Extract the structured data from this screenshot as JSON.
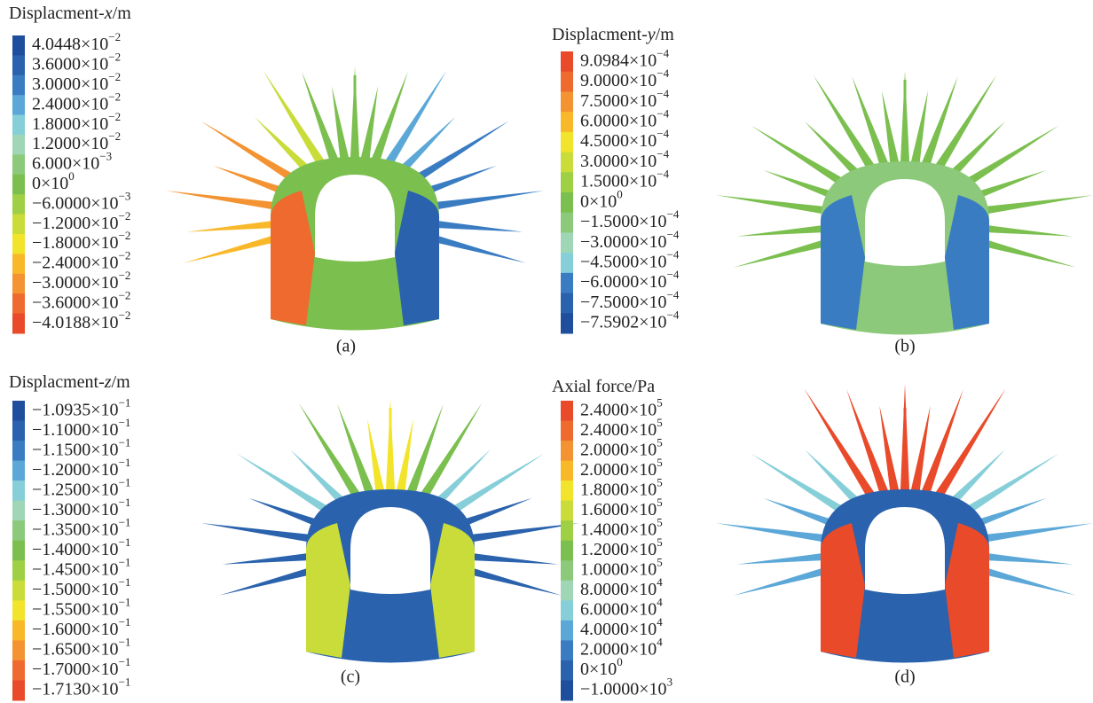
{
  "panels": [
    {
      "title": [
        "Displacment-",
        "x",
        "/m"
      ],
      "caption": "(a)",
      "legend": [
        {
          "m": "4.0448×10",
          "e": "−2"
        },
        {
          "m": "3.6000×10",
          "e": "−2"
        },
        {
          "m": "3.0000×10",
          "e": "−2"
        },
        {
          "m": "2.4000×10",
          "e": "−2"
        },
        {
          "m": "1.8000×10",
          "e": "−2"
        },
        {
          "m": "1.2000×10",
          "e": "−2"
        },
        {
          "m": "6.000×10",
          "e": "−3"
        },
        {
          "m": "0×10",
          "e": "0"
        },
        {
          "m": "−6.0000×10",
          "e": "−3"
        },
        {
          "m": "−1.2000×10",
          "e": "−2"
        },
        {
          "m": "−1.8000×10",
          "e": "−2"
        },
        {
          "m": "−2.4000×10",
          "e": "−2"
        },
        {
          "m": "−3.0000×10",
          "e": "−2"
        },
        {
          "m": "−3.6000×10",
          "e": "−2"
        },
        {
          "m": "−4.0188×10",
          "e": "−2"
        }
      ],
      "colors": [
        "#1f4e9c",
        "#2a62ad",
        "#3a7cc2",
        "#5ba8d8",
        "#86cfd9",
        "#9fd6b5",
        "#8cc97a",
        "#7bbf4f",
        "#9fcf45",
        "#c9dc3a",
        "#f2e42a",
        "#f8b82a",
        "#f39332",
        "#ee6a2e",
        "#e84a2a"
      ]
    },
    {
      "title": [
        "Displacment-",
        "y",
        "/m"
      ],
      "caption": "(b)",
      "legend": [
        {
          "m": "9.0984×10",
          "e": "−4"
        },
        {
          "m": "9.0000×10",
          "e": "−4"
        },
        {
          "m": "7.5000×10",
          "e": "−4"
        },
        {
          "m": "6.0000×10",
          "e": "−4"
        },
        {
          "m": "4.5000×10",
          "e": "−4"
        },
        {
          "m": "3.0000×10",
          "e": "−4"
        },
        {
          "m": "1.5000×10",
          "e": "−4"
        },
        {
          "m": "0×10",
          "e": "0"
        },
        {
          "m": "−1.5000×10",
          "e": "−4"
        },
        {
          "m": "−3.0000×10",
          "e": "−4"
        },
        {
          "m": "−4.5000×10",
          "e": "−4"
        },
        {
          "m": "−6.0000×10",
          "e": "−4"
        },
        {
          "m": "−7.5000×10",
          "e": "−4"
        },
        {
          "m": "−7.5902×10",
          "e": "−4"
        }
      ],
      "colors": [
        "#e84a2a",
        "#ee6a2e",
        "#f39332",
        "#f8b82a",
        "#f2e42a",
        "#c9dc3a",
        "#9fcf45",
        "#7bbf4f",
        "#8cc97a",
        "#9fd6b5",
        "#86cfd9",
        "#3a7cc2",
        "#2a62ad",
        "#1f4e9c"
      ]
    },
    {
      "title": [
        "Displacment-",
        "z",
        "/m"
      ],
      "caption": "(c)",
      "legend": [
        {
          "m": "−1.0935×10",
          "e": "−1"
        },
        {
          "m": "−1.1000×10",
          "e": "−1"
        },
        {
          "m": "−1.1500×10",
          "e": "−1"
        },
        {
          "m": "−1.2000×10",
          "e": "−1"
        },
        {
          "m": "−1.2500×10",
          "e": "−1"
        },
        {
          "m": "−1.3000×10",
          "e": "−1"
        },
        {
          "m": "−1.3500×10",
          "e": "−1"
        },
        {
          "m": "−1.4000×10",
          "e": "−1"
        },
        {
          "m": "−1.4500×10",
          "e": "−1"
        },
        {
          "m": "−1.5000×10",
          "e": "−1"
        },
        {
          "m": "−1.5500×10",
          "e": "−1"
        },
        {
          "m": "−1.6000×10",
          "e": "−1"
        },
        {
          "m": "−1.6500×10",
          "e": "−1"
        },
        {
          "m": "−1.7000×10",
          "e": "−1"
        },
        {
          "m": "−1.7130×10",
          "e": "−1"
        }
      ],
      "colors": [
        "#1f4e9c",
        "#2a62ad",
        "#3a7cc2",
        "#5ba8d8",
        "#86cfd9",
        "#9fd6b5",
        "#8cc97a",
        "#7bbf4f",
        "#9fcf45",
        "#c9dc3a",
        "#f2e42a",
        "#f8b82a",
        "#f39332",
        "#ee6a2e",
        "#e84a2a"
      ]
    },
    {
      "title": [
        "Axial force/Pa"
      ],
      "caption": "(d)",
      "legend": [
        {
          "m": "2.4000×10",
          "e": "5"
        },
        {
          "m": "2.4000×10",
          "e": "5"
        },
        {
          "m": "2.0000×10",
          "e": "5"
        },
        {
          "m": "2.0000×10",
          "e": "5"
        },
        {
          "m": "1.8000×10",
          "e": "5"
        },
        {
          "m": "1.6000×10",
          "e": "5"
        },
        {
          "m": "1.4000×10",
          "e": "5"
        },
        {
          "m": "1.2000×10",
          "e": "5"
        },
        {
          "m": "1.0000×10",
          "e": "5"
        },
        {
          "m": "8.0000×10",
          "e": "4"
        },
        {
          "m": "6.0000×10",
          "e": "4"
        },
        {
          "m": "4.0000×10",
          "e": "4"
        },
        {
          "m": "2.0000×10",
          "e": "4"
        },
        {
          "m": "0×10",
          "e": "0"
        },
        {
          "m": "−1.0000×10",
          "e": "3"
        }
      ],
      "colors": [
        "#e84a2a",
        "#ee6a2e",
        "#f39332",
        "#f8b82a",
        "#f2e42a",
        "#c9dc3a",
        "#9fcf45",
        "#7bbf4f",
        "#8cc97a",
        "#9fd6b5",
        "#86cfd9",
        "#5ba8d8",
        "#3a7cc2",
        "#2a62ad",
        "#1f4e9c"
      ]
    }
  ]
}
